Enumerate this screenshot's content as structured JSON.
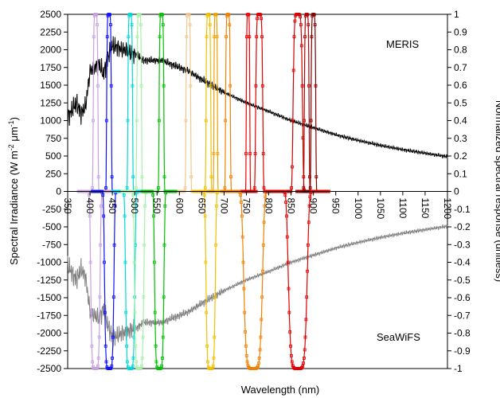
{
  "chart_data": {
    "type": "line",
    "xlabel": "Wavelength (nm)",
    "ylabel_left": "Spectral Irradiance (W m^-2 μm^-1)",
    "ylabel_right": "Normalized spectral response (unitless)",
    "xlim": [
      350,
      1200
    ],
    "ylim_left": [
      -2500,
      2500
    ],
    "ylim_right": [
      -1,
      1
    ],
    "x_ticks": [
      350,
      400,
      450,
      500,
      550,
      600,
      650,
      700,
      750,
      800,
      850,
      900,
      950,
      1000,
      1050,
      1100,
      1150,
      1200
    ],
    "y_ticks_left": [
      2500,
      2250,
      2000,
      1750,
      1500,
      1250,
      1000,
      750,
      500,
      250,
      0,
      -250,
      -500,
      -750,
      -1000,
      -1250,
      -1500,
      -1750,
      -2000,
      -2250,
      -2500
    ],
    "y_ticks_right": [
      1,
      0.9,
      0.8,
      0.7,
      0.6,
      0.5,
      0.4,
      0.3,
      0.2,
      0.1,
      0,
      -0.1,
      -0.2,
      -0.3,
      -0.4,
      -0.5,
      -0.6,
      -0.7,
      -0.8,
      -0.9,
      -1
    ],
    "grid": false,
    "annotations": [
      {
        "text": "MERIS",
        "region": "upper-right"
      },
      {
        "text": "SeaWiFS",
        "region": "lower-right"
      }
    ],
    "irradiance": {
      "x": [
        350,
        360,
        370,
        380,
        390,
        400,
        410,
        420,
        430,
        440,
        450,
        460,
        470,
        480,
        490,
        500,
        520,
        540,
        560,
        580,
        600,
        620,
        650,
        700,
        750,
        800,
        850,
        900,
        950,
        1000,
        1050,
        1100,
        1150,
        1200
      ],
      "y": [
        1050,
        1150,
        1250,
        1100,
        1200,
        1700,
        1750,
        1800,
        1650,
        1900,
        2050,
        2050,
        2000,
        2000,
        1950,
        1950,
        1850,
        1850,
        1850,
        1800,
        1750,
        1700,
        1580,
        1400,
        1250,
        1130,
        1000,
        900,
        800,
        720,
        650,
        590,
        540,
        490
      ],
      "color_meris": "#000000",
      "color_seawifs": "#808080"
    },
    "meris_bands": [
      {
        "center": 412.5,
        "width": 10,
        "color": "#c8a0e0"
      },
      {
        "center": 442.5,
        "width": 10,
        "color": "#1010ff"
      },
      {
        "center": 490,
        "width": 10,
        "color": "#00d8d8"
      },
      {
        "center": 510,
        "width": 10,
        "color": "#a8f0a8"
      },
      {
        "center": 560,
        "width": 10,
        "color": "#00c000"
      },
      {
        "center": 620,
        "width": 10,
        "color": "#f0c890"
      },
      {
        "center": 665,
        "width": 10,
        "color": "#f0c000"
      },
      {
        "center": 681.25,
        "width": 7.5,
        "color": "#f0a000"
      },
      {
        "center": 708.75,
        "width": 10,
        "color": "#f08000"
      },
      {
        "center": 753.75,
        "width": 7.5,
        "color": "#f00000"
      },
      {
        "center": 778.75,
        "width": 15,
        "color": "#e00000"
      },
      {
        "center": 865,
        "width": 20,
        "color": "#d00000"
      },
      {
        "center": 885,
        "width": 10,
        "color": "#b00000"
      },
      {
        "center": 900,
        "width": 10,
        "color": "#800000"
      }
    ],
    "seawifs_bands": [
      {
        "center": 412,
        "width": 20,
        "color": "#c8a0e0"
      },
      {
        "center": 443,
        "width": 20,
        "color": "#1010ff"
      },
      {
        "center": 490,
        "width": 20,
        "color": "#00d8d8"
      },
      {
        "center": 510,
        "width": 20,
        "color": "#a8f0a8"
      },
      {
        "center": 555,
        "width": 20,
        "color": "#00c000"
      },
      {
        "center": 670,
        "width": 20,
        "color": "#f0c000"
      },
      {
        "center": 765,
        "width": 40,
        "color": "#f08000"
      },
      {
        "center": 865,
        "width": 40,
        "color": "#e00000"
      }
    ]
  }
}
